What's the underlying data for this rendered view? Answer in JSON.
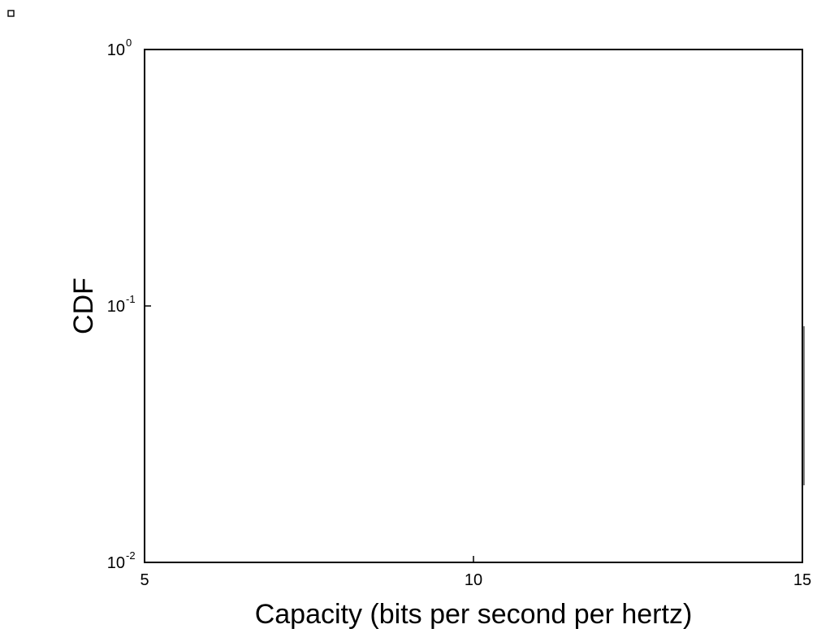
{
  "chart_data": {
    "type": "line",
    "title": "",
    "xlabel": "Capacity (bits per second per hertz)",
    "ylabel": "CDF",
    "xlim": [
      5,
      15
    ],
    "ylim": [
      0.01,
      1
    ],
    "yscale": "log",
    "grid": false,
    "x_ticks": [
      {
        "value": 5,
        "label": "5"
      },
      {
        "value": 10,
        "label": "10"
      },
      {
        "value": 15,
        "label": "15"
      }
    ],
    "y_ticks": [
      {
        "value": 1,
        "base": "10",
        "exponent": "0"
      },
      {
        "value": 0.1,
        "base": "10",
        "exponent": "-1"
      },
      {
        "value": 0.01,
        "base": "10",
        "exponent": "-2"
      }
    ],
    "series": [],
    "colors": {
      "axis": "#000000",
      "background": "#ffffff"
    }
  }
}
